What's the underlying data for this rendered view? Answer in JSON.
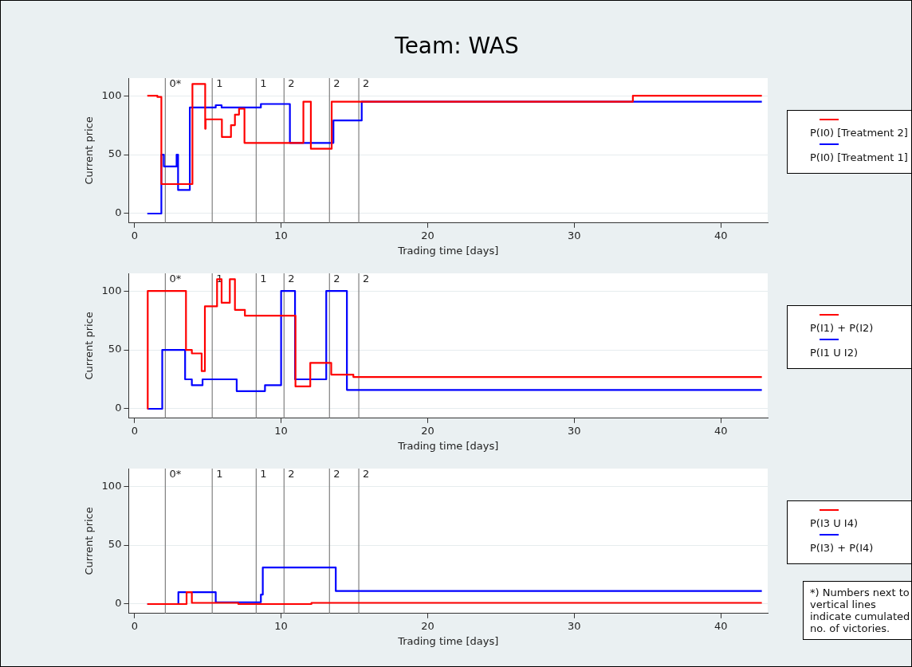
{
  "chart_data": [
    {
      "type": "step",
      "title": "Team: WAS",
      "xlabel": "Trading time [days]",
      "ylabel": "Current price",
      "xlim": [
        -0.4,
        43.2
      ],
      "xticks": [
        0,
        10,
        20,
        30,
        40
      ],
      "ylim": [
        -8,
        115
      ],
      "yticks": [
        0,
        50,
        100
      ],
      "grid": "y",
      "legend": "right",
      "marker": "none",
      "line_style": "solid",
      "annotations": [
        {
          "text": "0*",
          "x": 2.1,
          "y": 110
        },
        {
          "text": "1",
          "x": 5.3,
          "y": 110
        },
        {
          "text": "1",
          "x": 8.3,
          "y": 110
        },
        {
          "text": "2",
          "x": 10.2,
          "y": 110
        },
        {
          "text": "2",
          "x": 13.3,
          "y": 110
        },
        {
          "text": "2",
          "x": 15.3,
          "y": 110
        }
      ],
      "ref_lines": [
        {
          "axis": "x",
          "value": 2.1,
          "color": "#808080"
        },
        {
          "axis": "x",
          "value": 5.3,
          "color": "#808080"
        },
        {
          "axis": "x",
          "value": 8.3,
          "color": "#808080"
        },
        {
          "axis": "x",
          "value": 10.2,
          "color": "#808080"
        },
        {
          "axis": "x",
          "value": 13.3,
          "color": "#808080"
        },
        {
          "axis": "x",
          "value": 15.3,
          "color": "#808080"
        }
      ],
      "series": [
        {
          "name": "P(I0) [Treatment 2]",
          "color": "#ff0000",
          "x": [
            0.87,
            1.56,
            1.83,
            3.95,
            4.82,
            4.85,
            5.96,
            6.58,
            6.85,
            7.13,
            7.5,
            11.52,
            12.03,
            13.45,
            34.0,
            42.8
          ],
          "values": [
            100,
            99,
            25,
            110,
            72,
            80,
            65,
            75,
            84,
            89,
            60,
            95,
            55,
            95,
            100,
            100
          ]
        },
        {
          "name": "P(I0) [Treatment 1]",
          "color": "#0000ff",
          "x": [
            0.87,
            1.83,
            2.0,
            2.87,
            2.97,
            3.77,
            5.54,
            5.94,
            8.62,
            10.6,
            13.57,
            15.5,
            42.8
          ],
          "values": [
            0,
            50,
            40,
            50,
            20,
            90,
            92,
            90,
            93,
            60,
            79,
            95,
            95
          ]
        }
      ]
    },
    {
      "type": "step",
      "xlabel": "Trading time [days]",
      "ylabel": "Current price",
      "xlim": [
        -0.4,
        43.2
      ],
      "xticks": [
        0,
        10,
        20,
        30,
        40
      ],
      "ylim": [
        -8,
        115
      ],
      "yticks": [
        0,
        50,
        100
      ],
      "grid": "y",
      "legend": "right",
      "marker": "none",
      "line_style": "solid",
      "annotations": [
        {
          "text": "0*",
          "x": 2.1,
          "y": 110
        },
        {
          "text": "1",
          "x": 5.3,
          "y": 110
        },
        {
          "text": "1",
          "x": 8.3,
          "y": 110
        },
        {
          "text": "2",
          "x": 10.2,
          "y": 110
        },
        {
          "text": "2",
          "x": 13.3,
          "y": 110
        },
        {
          "text": "2",
          "x": 15.3,
          "y": 110
        }
      ],
      "ref_lines": [
        {
          "axis": "x",
          "value": 2.1,
          "color": "#808080"
        },
        {
          "axis": "x",
          "value": 5.3,
          "color": "#808080"
        },
        {
          "axis": "x",
          "value": 8.3,
          "color": "#808080"
        },
        {
          "axis": "x",
          "value": 10.2,
          "color": "#808080"
        },
        {
          "axis": "x",
          "value": 13.3,
          "color": "#808080"
        },
        {
          "axis": "x",
          "value": 15.3,
          "color": "#808080"
        }
      ],
      "series": [
        {
          "name": "P(I1) + P(I2)",
          "color": "#ff0000",
          "x": [
            0.87,
            0.9,
            3.51,
            3.91,
            4.58,
            4.8,
            5.63,
            5.94,
            6.5,
            6.85,
            7.53,
            10.98,
            11.99,
            13.42,
            14.93,
            42.8
          ],
          "values": [
            0,
            100,
            50,
            47,
            32,
            87,
            110,
            90,
            110,
            84,
            79,
            19,
            39,
            29,
            27,
            27
          ]
        },
        {
          "name": "P(I1 U I2)",
          "color": "#0000ff",
          "x": [
            0.87,
            1.89,
            3.45,
            3.91,
            4.64,
            6.97,
            8.9,
            10.0,
            10.95,
            13.08,
            14.49,
            42.8
          ],
          "values": [
            0,
            50,
            25,
            20,
            25,
            15,
            20,
            100,
            25,
            100,
            16,
            16
          ]
        }
      ]
    },
    {
      "type": "step",
      "xlabel": "Trading time [days]",
      "ylabel": "Current price",
      "xlim": [
        -0.4,
        43.2
      ],
      "xticks": [
        0,
        10,
        20,
        30,
        40
      ],
      "ylim": [
        -8,
        115
      ],
      "yticks": [
        0,
        50,
        100
      ],
      "grid": "y",
      "legend": "right",
      "marker": "none",
      "line_style": "solid",
      "annotations": [
        {
          "text": "0*",
          "x": 2.1,
          "y": 110
        },
        {
          "text": "1",
          "x": 5.3,
          "y": 110
        },
        {
          "text": "1",
          "x": 8.3,
          "y": 110
        },
        {
          "text": "2",
          "x": 10.2,
          "y": 110
        },
        {
          "text": "2",
          "x": 13.3,
          "y": 110
        },
        {
          "text": "2",
          "x": 15.3,
          "y": 110
        },
        "*) Numbers next to vertical lines indicate cumulated no. of victories."
      ],
      "ref_lines": [
        {
          "axis": "x",
          "value": 2.1,
          "color": "#808080"
        },
        {
          "axis": "x",
          "value": 5.3,
          "color": "#808080"
        },
        {
          "axis": "x",
          "value": 8.3,
          "color": "#808080"
        },
        {
          "axis": "x",
          "value": 10.2,
          "color": "#808080"
        },
        {
          "axis": "x",
          "value": 13.3,
          "color": "#808080"
        },
        {
          "axis": "x",
          "value": 15.3,
          "color": "#808080"
        }
      ],
      "series": [
        {
          "name": "P(I3 U I4)",
          "color": "#ff0000",
          "x": [
            0.87,
            3.55,
            3.91,
            7.08,
            12.07,
            42.8
          ],
          "values": [
            0,
            10,
            1,
            0,
            1,
            1
          ]
        },
        {
          "name": "P(I3) + P(I4)",
          "color": "#0000ff",
          "x": [
            0.87,
            2.99,
            5.54,
            8.62,
            8.75,
            13.73,
            42.8
          ],
          "values": [
            0,
            10,
            1.5,
            8,
            31,
            11,
            11
          ]
        }
      ]
    }
  ]
}
